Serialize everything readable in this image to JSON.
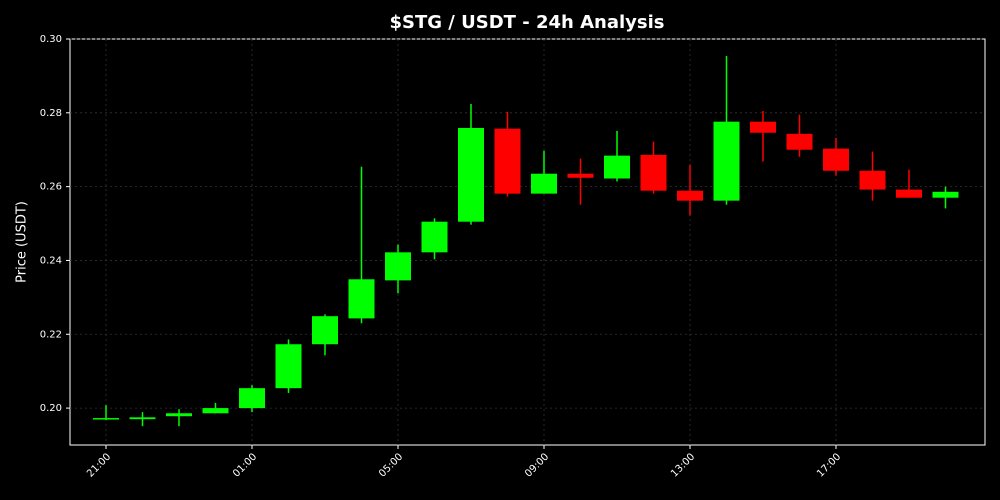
{
  "chart_data": {
    "type": "candlestick",
    "title": "$STG / USDT - 24h Analysis",
    "y_label": "Price (USDT)",
    "categories": [
      "21:00",
      null,
      null,
      null,
      "01:00",
      null,
      null,
      null,
      "05:00",
      null,
      null,
      null,
      "09:00",
      null,
      null,
      null,
      "13:00",
      null,
      null,
      null,
      "17:00",
      null,
      null,
      null
    ],
    "open": [
      0.1972,
      0.197,
      0.1978,
      0.1986,
      0.2,
      0.2054,
      0.2173,
      0.2243,
      0.2346,
      0.2422,
      0.2505,
      0.2757,
      0.2581,
      0.2635,
      0.2622,
      0.2686,
      0.2589,
      0.2562,
      0.2776,
      0.2743,
      0.2703,
      0.2643,
      0.2592,
      0.257
    ],
    "high": [
      0.2008,
      0.1989,
      0.1997,
      0.2014,
      0.2062,
      0.2186,
      0.2254,
      0.2654,
      0.2443,
      0.2514,
      0.2824,
      0.2803,
      0.2697,
      0.2676,
      0.2751,
      0.2722,
      0.2659,
      0.2954,
      0.2805,
      0.2795,
      0.2732,
      0.2695,
      0.2646,
      0.26
    ],
    "low": [
      0.1968,
      0.1951,
      0.1951,
      0.1986,
      0.1989,
      0.2041,
      0.2143,
      0.223,
      0.2311,
      0.2403,
      0.2497,
      0.2573,
      0.2581,
      0.2551,
      0.2614,
      0.2581,
      0.2522,
      0.2551,
      0.2668,
      0.2681,
      0.263,
      0.2562,
      0.257,
      0.2541
    ],
    "close": [
      0.1973,
      0.1975,
      0.1986,
      0.2,
      0.2054,
      0.2173,
      0.2249,
      0.2349,
      0.2422,
      0.2505,
      0.2759,
      0.2581,
      0.2635,
      0.2624,
      0.2684,
      0.2589,
      0.2562,
      0.2776,
      0.2746,
      0.27,
      0.2643,
      0.2592,
      0.257,
      0.2586
    ],
    "up_color": "#00ff00",
    "down_color": "#ff0000",
    "ylim": [
      0.19,
      0.3
    ],
    "yticks": [
      {
        "value": 0.2,
        "label": "0.20"
      },
      0.22,
      0.24,
      0.26,
      0.28,
      {
        "value": 0.3,
        "label": "0.30"
      }
    ],
    "grid": true
  }
}
